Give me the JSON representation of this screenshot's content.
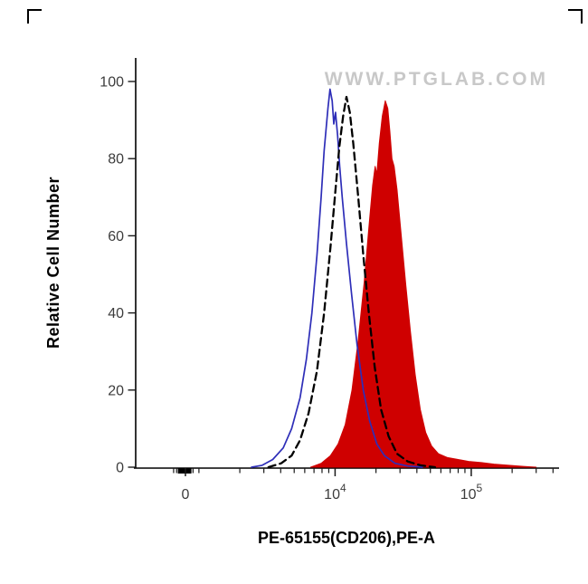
{
  "watermark": "WWW.PTGLAB.COM",
  "chart_data": {
    "type": "line",
    "subtype": "flow-cytometry-histogram",
    "title": "",
    "xlabel": "PE-65155(CD206),PE-A",
    "ylabel": "Relative Cell Number",
    "ylim": [
      0,
      100
    ],
    "grid": false,
    "legend": "none",
    "yticks": [
      0,
      20,
      40,
      60,
      80,
      100
    ],
    "xticks": [
      {
        "base": "0",
        "exp": "",
        "pos": 0.118
      },
      {
        "base": "10",
        "exp": "4",
        "pos": 0.473
      },
      {
        "base": "10",
        "exp": "5",
        "pos": 0.796
      }
    ],
    "x_minor_ticks": [
      0.09,
      0.097,
      0.104,
      0.11,
      0.116,
      0.121,
      0.126,
      0.131,
      0.136,
      0.15,
      0.247,
      0.304,
      0.344,
      0.376,
      0.401,
      0.423,
      0.442,
      0.458,
      0.57,
      0.627,
      0.667,
      0.699,
      0.724,
      0.746,
      0.765,
      0.781,
      0.893,
      0.95,
      0.99
    ],
    "x_tick_cluster": {
      "from": 0.1,
      "to": 0.132
    },
    "series": [
      {
        "name": "red-filled",
        "style": "filled",
        "color": "#cf0000",
        "points": [
          [
            0.415,
            0
          ],
          [
            0.44,
            1
          ],
          [
            0.462,
            3
          ],
          [
            0.48,
            6
          ],
          [
            0.497,
            11
          ],
          [
            0.513,
            20
          ],
          [
            0.528,
            33
          ],
          [
            0.542,
            48
          ],
          [
            0.553,
            62
          ],
          [
            0.562,
            73
          ],
          [
            0.568,
            78
          ],
          [
            0.572,
            76
          ],
          [
            0.578,
            84
          ],
          [
            0.585,
            91
          ],
          [
            0.592,
            95
          ],
          [
            0.598,
            93
          ],
          [
            0.603,
            87
          ],
          [
            0.608,
            80
          ],
          [
            0.613,
            78
          ],
          [
            0.62,
            72
          ],
          [
            0.63,
            60
          ],
          [
            0.641,
            47
          ],
          [
            0.652,
            35
          ],
          [
            0.663,
            24
          ],
          [
            0.675,
            15
          ],
          [
            0.688,
            9
          ],
          [
            0.702,
            5.5
          ],
          [
            0.718,
            3.5
          ],
          [
            0.74,
            2.5
          ],
          [
            0.765,
            2
          ],
          [
            0.79,
            1.5
          ],
          [
            0.82,
            1.2
          ],
          [
            0.85,
            0.8
          ],
          [
            0.885,
            0.5
          ],
          [
            0.92,
            0.2
          ],
          [
            0.95,
            0
          ]
        ]
      },
      {
        "name": "blue-solid",
        "style": "solid",
        "color": "#2e2eb8",
        "points": [
          [
            0.275,
            0
          ],
          [
            0.3,
            0.5
          ],
          [
            0.325,
            2
          ],
          [
            0.35,
            5
          ],
          [
            0.37,
            10
          ],
          [
            0.39,
            18
          ],
          [
            0.405,
            28
          ],
          [
            0.418,
            40
          ],
          [
            0.43,
            55
          ],
          [
            0.44,
            70
          ],
          [
            0.447,
            82
          ],
          [
            0.452,
            88
          ],
          [
            0.456,
            93
          ],
          [
            0.461,
            98
          ],
          [
            0.466,
            95
          ],
          [
            0.47,
            89
          ],
          [
            0.474,
            92
          ],
          [
            0.479,
            86
          ],
          [
            0.484,
            78
          ],
          [
            0.49,
            70
          ],
          [
            0.5,
            58
          ],
          [
            0.512,
            45
          ],
          [
            0.525,
            32
          ],
          [
            0.54,
            20
          ],
          [
            0.555,
            12
          ],
          [
            0.572,
            6
          ],
          [
            0.59,
            3
          ],
          [
            0.615,
            1
          ],
          [
            0.645,
            0.3
          ],
          [
            0.68,
            0
          ]
        ]
      },
      {
        "name": "black-dashed",
        "style": "dashed",
        "color": "#000000",
        "points": [
          [
            0.315,
            0
          ],
          [
            0.345,
            1
          ],
          [
            0.37,
            3
          ],
          [
            0.39,
            7
          ],
          [
            0.41,
            14
          ],
          [
            0.43,
            25
          ],
          [
            0.447,
            40
          ],
          [
            0.462,
            57
          ],
          [
            0.474,
            72
          ],
          [
            0.483,
            83
          ],
          [
            0.492,
            91
          ],
          [
            0.5,
            96
          ],
          [
            0.508,
            92
          ],
          [
            0.516,
            84
          ],
          [
            0.528,
            70
          ],
          [
            0.54,
            55
          ],
          [
            0.553,
            40
          ],
          [
            0.567,
            26
          ],
          [
            0.582,
            15
          ],
          [
            0.6,
            8
          ],
          [
            0.62,
            3.5
          ],
          [
            0.645,
            1.5
          ],
          [
            0.675,
            0.5
          ],
          [
            0.71,
            0
          ]
        ]
      }
    ]
  }
}
